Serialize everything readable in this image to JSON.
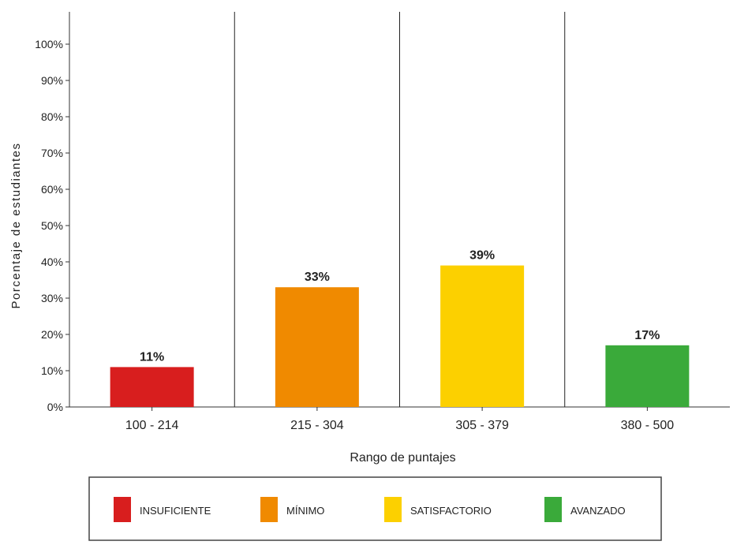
{
  "chart_data": {
    "type": "bar",
    "title": "",
    "xlabel": "Rango de puntajes",
    "ylabel": "Porcentaje de estudiantes",
    "categories": [
      "100 - 214",
      "215 - 304",
      "305 - 379",
      "380 - 500"
    ],
    "values": [
      11,
      33,
      39,
      17
    ],
    "value_labels": [
      "11%",
      "33%",
      "39%",
      "17%"
    ],
    "ylim": [
      0,
      100
    ],
    "yticks": [
      "0%",
      "10%",
      "20%",
      "30%",
      "40%",
      "50%",
      "60%",
      "70%",
      "80%",
      "90%",
      "100%"
    ],
    "grid": false,
    "legend_position": "bottom",
    "legend": [
      {
        "label": "INSUFICIENTE",
        "color": "#d81e1e"
      },
      {
        "label": "MÍNIMO",
        "color": "#f08a00"
      },
      {
        "label": "SATISFACTORIO",
        "color": "#fcd000"
      },
      {
        "label": "AVANZADO",
        "color": "#3aaa3a"
      }
    ],
    "colors": [
      "#d81e1e",
      "#f08a00",
      "#fcd000",
      "#3aaa3a"
    ]
  }
}
